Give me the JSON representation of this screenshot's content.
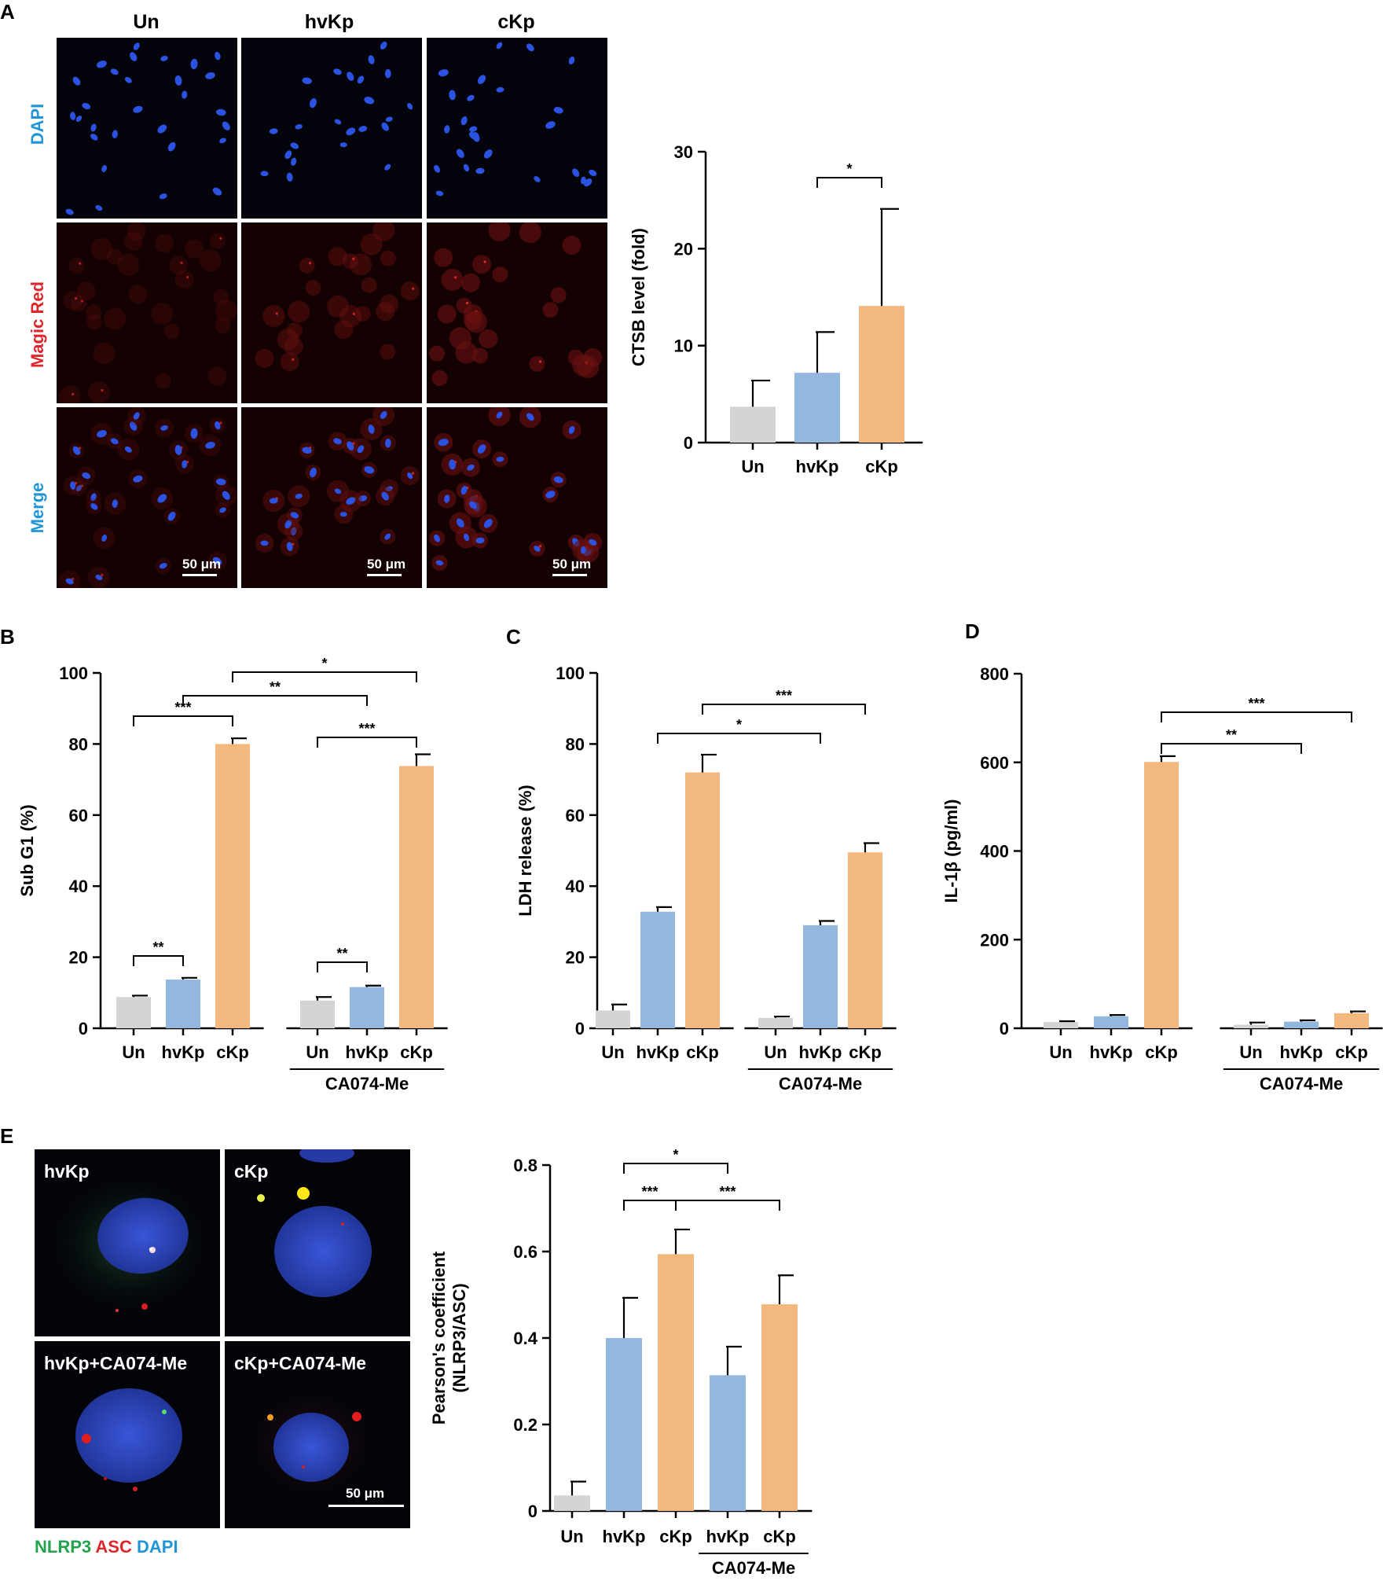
{
  "figure": {
    "panel_letters": [
      "A",
      "B",
      "C",
      "D",
      "E"
    ],
    "colors": {
      "un": "#d4d4d4",
      "hvkp": "#94b8dd",
      "ckp": "#f3b87d",
      "dapi_text": "#1f94d6",
      "magic_red_text": "#e0242b",
      "merge_text": "#1f94d6",
      "nlrp3_text": "#22a24a",
      "asc_text": "#e0242b"
    },
    "panel_a": {
      "column_headers": [
        "Un",
        "hvKp",
        "cKp"
      ],
      "row_labels": [
        "DAPI",
        "Magic Red",
        "Merge"
      ],
      "scale_bar_label": "50 μm"
    },
    "panel_e": {
      "image_labels": [
        "hvKp",
        "cKp",
        "hvKp+CA074-Me",
        "cKp+CA074-Me"
      ],
      "scale_bar_label": "50 μm",
      "legend": [
        "NLRP3",
        "ASC",
        "DAPI"
      ]
    }
  },
  "chart_data": [
    {
      "panel": "A",
      "type": "bar",
      "categories": [
        "Un",
        "hvKp",
        "cKp"
      ],
      "values": [
        3.7,
        7.2,
        14.1
      ],
      "errors": [
        2.7,
        4.2,
        10.0
      ],
      "colors": [
        "un",
        "hvkp",
        "ckp"
      ],
      "ylabel": "CTSB level (fold)",
      "ylim": [
        0,
        30
      ],
      "yticks": [
        0,
        10,
        20,
        30
      ],
      "group_labels": [],
      "significance": [
        {
          "from": 1,
          "to": 2,
          "label": "*"
        }
      ]
    },
    {
      "panel": "B",
      "type": "bar",
      "categories": [
        "Un",
        "hvKp",
        "cKp",
        "Un",
        "hvKp",
        "cKp"
      ],
      "values": [
        8.8,
        13.7,
        80.0,
        7.8,
        11.6,
        73.8
      ],
      "errors": [
        0.4,
        0.5,
        1.6,
        1.0,
        0.4,
        3.3
      ],
      "colors": [
        "un",
        "hvkp",
        "ckp",
        "un",
        "hvkp",
        "ckp"
      ],
      "ylabel": "Sub G1 (%)",
      "ylim": [
        0,
        100
      ],
      "yticks": [
        0,
        20,
        40,
        60,
        80,
        100
      ],
      "group_labels": [
        {
          "from": 3,
          "to": 5,
          "label": "CA074-Me"
        }
      ],
      "significance": [
        {
          "from": 0,
          "to": 1,
          "label": "**"
        },
        {
          "from": 0,
          "to": 2,
          "label": "***"
        },
        {
          "from": 1,
          "to": 4,
          "label": "**"
        },
        {
          "from": 2,
          "to": 5,
          "label": "*"
        },
        {
          "from": 3,
          "to": 4,
          "label": "**"
        },
        {
          "from": 3,
          "to": 5,
          "label": "***"
        }
      ]
    },
    {
      "panel": "C",
      "type": "bar",
      "categories": [
        "Un",
        "hvKp",
        "cKp",
        "Un",
        "hvKp",
        "cKp"
      ],
      "values": [
        5.0,
        32.8,
        72.0,
        2.9,
        29.0,
        49.5
      ],
      "errors": [
        1.7,
        1.3,
        5.0,
        0.4,
        1.2,
        2.6
      ],
      "colors": [
        "un",
        "hvkp",
        "ckp",
        "un",
        "hvkp",
        "ckp"
      ],
      "ylabel": "LDH release (%)",
      "ylim": [
        0,
        100
      ],
      "yticks": [
        0,
        20,
        40,
        60,
        80,
        100
      ],
      "group_labels": [
        {
          "from": 3,
          "to": 5,
          "label": "CA074-Me"
        }
      ],
      "significance": [
        {
          "from": 1,
          "to": 4,
          "label": "*"
        },
        {
          "from": 2,
          "to": 5,
          "label": "***"
        }
      ]
    },
    {
      "panel": "D",
      "type": "bar",
      "categories": [
        "Un",
        "hvKp",
        "cKp",
        "Un",
        "hvKp",
        "cKp"
      ],
      "values": [
        14,
        27,
        601,
        8,
        15,
        34
      ],
      "errors": [
        2,
        3,
        13,
        5,
        3,
        4
      ],
      "colors": [
        "un",
        "hvkp",
        "ckp",
        "un",
        "hvkp",
        "ckp"
      ],
      "ylabel": "IL-1β (pg/ml)",
      "ylim": [
        0,
        800
      ],
      "yticks": [
        0,
        200,
        400,
        600,
        800
      ],
      "group_labels": [
        {
          "from": 3,
          "to": 5,
          "label": "CA074-Me"
        }
      ],
      "significance": [
        {
          "from": 2,
          "to": 4,
          "label": "**"
        },
        {
          "from": 2,
          "to": 5,
          "label": "***"
        }
      ]
    },
    {
      "panel": "E",
      "type": "bar",
      "categories": [
        "Un",
        "hvKp",
        "cKp",
        "hvKp",
        "cKp"
      ],
      "values": [
        0.036,
        0.4,
        0.594,
        0.314,
        0.478
      ],
      "errors": [
        0.032,
        0.093,
        0.057,
        0.066,
        0.067
      ],
      "colors": [
        "un",
        "hvkp",
        "ckp",
        "hvkp",
        "ckp"
      ],
      "ylabel": "Pearson's coefficient (NLRP3/ASC)",
      "ylabel_lines": [
        "Pearson's coefficient",
        "(NLRP3/ASC)"
      ],
      "ylim": [
        0,
        0.8
      ],
      "yticks": [
        0,
        0.2,
        0.4,
        0.6,
        0.8
      ],
      "ytick_labels": [
        "0",
        "0.2",
        "0.4",
        "0.6",
        "0.8"
      ],
      "group_labels": [
        {
          "from": 3,
          "to": 4,
          "label": "CA074-Me"
        }
      ],
      "significance": [
        {
          "from": 1,
          "to": 2,
          "label": "***"
        },
        {
          "from": 2,
          "to": 4,
          "label": "***"
        },
        {
          "from": 1,
          "to": 3,
          "label": "*"
        }
      ]
    }
  ]
}
